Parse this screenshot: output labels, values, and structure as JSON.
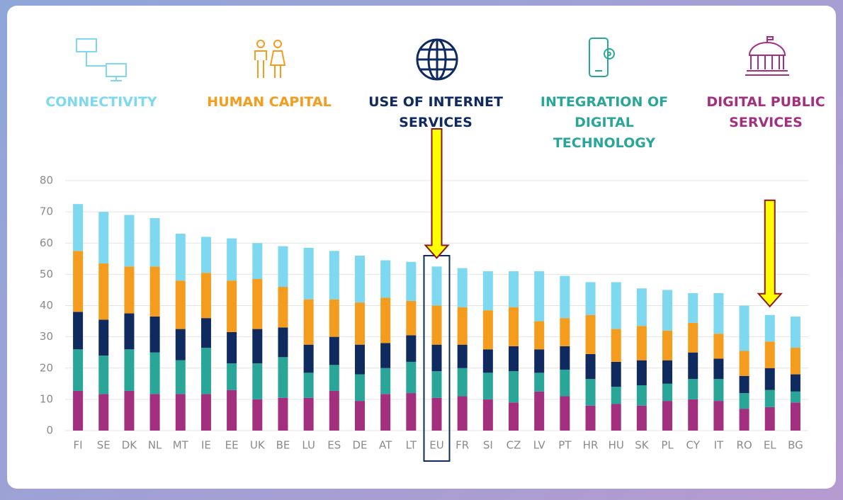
{
  "chart_data": {
    "type": "stacked_bar",
    "categories": [
      "FI",
      "SE",
      "DK",
      "NL",
      "MT",
      "IE",
      "EE",
      "UK",
      "BE",
      "LU",
      "ES",
      "DE",
      "AT",
      "LT",
      "EU",
      "FR",
      "SI",
      "CZ",
      "LV",
      "PT",
      "HR",
      "HU",
      "SK",
      "PL",
      "CY",
      "IT",
      "RO",
      "EL",
      "BG"
    ],
    "series": [
      {
        "name": "CONNECTIVITY",
        "color": "#7dd8f0",
        "values": [
          15,
          16.5,
          16.5,
          15.5,
          15,
          11.5,
          13.5,
          11.5,
          13,
          16.5,
          15.5,
          15,
          12,
          12.5,
          12.5,
          12.5,
          12.5,
          11.5,
          16,
          13.5,
          10.5,
          15,
          12,
          13,
          9.5,
          13,
          14.5,
          8.5,
          10
        ]
      },
      {
        "name": "HUMAN CAPITAL",
        "color": "#f39c1d",
        "values": [
          19.5,
          18,
          15,
          16,
          15.5,
          14.5,
          16.5,
          16,
          13,
          14.5,
          12,
          13.5,
          14.5,
          11,
          12.5,
          12,
          12.5,
          12.5,
          9,
          9,
          12.5,
          10.5,
          11,
          9.5,
          9.5,
          8,
          8,
          8.5,
          8.5
        ]
      },
      {
        "name": "USE OF INTERNET SERVICES",
        "color": "#0e2a5e",
        "values": [
          12,
          11.5,
          11.5,
          11.5,
          10,
          9.5,
          10,
          11,
          9.5,
          9,
          9,
          9.5,
          8,
          8.5,
          8.5,
          7.5,
          7.5,
          8,
          7.5,
          7.5,
          8,
          8,
          8,
          7.5,
          8.5,
          6.5,
          5.5,
          7,
          5.5
        ]
      },
      {
        "name": "INTEGRATION OF DIGITAL TECHNOLOGY",
        "color": "#2aa698",
        "values": [
          13.3,
          12.3,
          13.3,
          13.3,
          10.8,
          14.8,
          8.5,
          11.5,
          13,
          8,
          8.3,
          8.5,
          8.3,
          10,
          8.5,
          9,
          8.5,
          10,
          6,
          8.5,
          8.5,
          5.5,
          6.5,
          5.5,
          6.5,
          7,
          5,
          5.5,
          3.5
        ]
      },
      {
        "name": "DIGITAL PUBLIC SERVICES",
        "color": "#a3307e",
        "values": [
          12.7,
          11.7,
          12.7,
          11.7,
          11.7,
          11.7,
          13,
          10,
          10.5,
          10.5,
          12.7,
          9.5,
          11.7,
          12,
          10.5,
          11,
          10,
          9,
          12.5,
          11,
          8,
          8.5,
          8,
          9.5,
          10,
          9.5,
          7,
          7.5,
          9
        ]
      }
    ],
    "ylim": [
      0,
      80
    ],
    "yticks": [
      0,
      10,
      20,
      30,
      40,
      50,
      60,
      70,
      80
    ],
    "grid": true,
    "annotations": {
      "box": "EU",
      "arrows": [
        "EU",
        "EL"
      ]
    }
  }
}
